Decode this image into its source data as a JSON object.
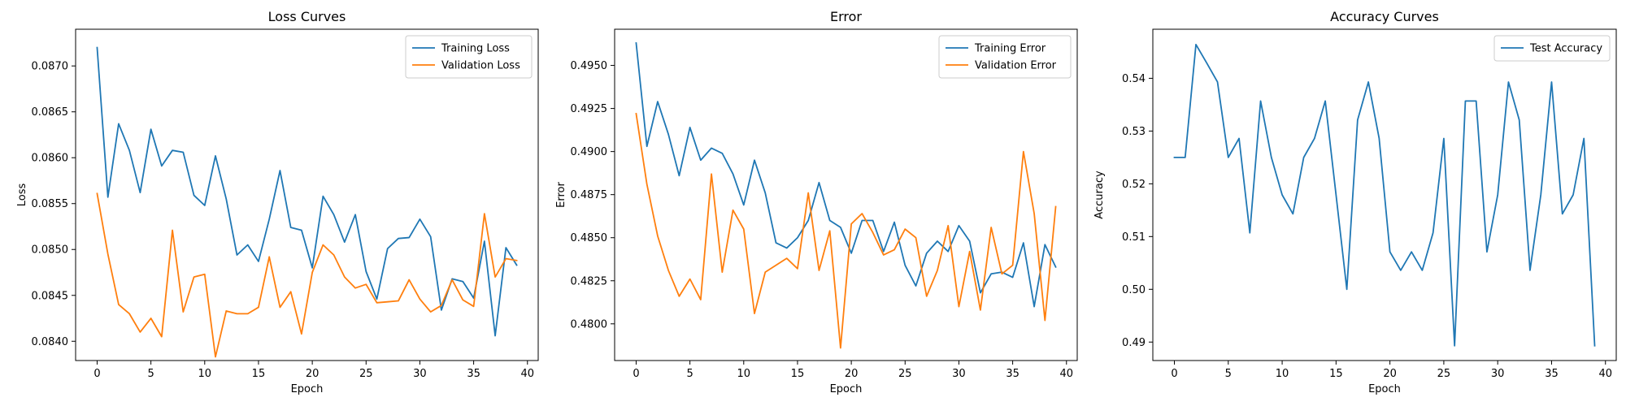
{
  "chart_data": [
    {
      "type": "line",
      "title": "Loss Curves",
      "xlabel": "Epoch",
      "ylabel": "Loss",
      "xlim": [
        -2,
        41
      ],
      "ylim": [
        0.08379,
        0.0874
      ],
      "xticks": [
        0,
        5,
        10,
        15,
        20,
        25,
        30,
        35,
        40
      ],
      "xtick_labels": [
        "0",
        "5",
        "10",
        "15",
        "20",
        "25",
        "30",
        "35",
        "40"
      ],
      "yticks": [
        0.084,
        0.0845,
        0.085,
        0.0855,
        0.086,
        0.0865,
        0.087
      ],
      "ytick_labels": [
        "0.0840",
        "0.0845",
        "0.0850",
        "0.0855",
        "0.0860",
        "0.0865",
        "0.0870"
      ],
      "legend": "top-right",
      "grid": false,
      "x": [
        0,
        1,
        2,
        3,
        4,
        5,
        6,
        7,
        8,
        9,
        10,
        11,
        12,
        13,
        14,
        15,
        16,
        17,
        18,
        19,
        20,
        21,
        22,
        23,
        24,
        25,
        26,
        27,
        28,
        29,
        30,
        31,
        32,
        33,
        34,
        35,
        36,
        37,
        38,
        39
      ],
      "series": [
        {
          "name": "Training Loss",
          "color": "#1f77b4",
          "values": [
            0.0872,
            0.08557,
            0.08637,
            0.08608,
            0.08562,
            0.08631,
            0.08591,
            0.08608,
            0.08606,
            0.08559,
            0.08548,
            0.08602,
            0.08555,
            0.08494,
            0.08505,
            0.08487,
            0.08533,
            0.08586,
            0.08524,
            0.08521,
            0.0848,
            0.08558,
            0.08538,
            0.08508,
            0.08538,
            0.08476,
            0.08446,
            0.08501,
            0.08512,
            0.08513,
            0.08533,
            0.08514,
            0.08434,
            0.08468,
            0.08465,
            0.08447,
            0.08509,
            0.08406,
            0.08502,
            0.08483
          ]
        },
        {
          "name": "Validation Loss",
          "color": "#ff7f0e",
          "values": [
            0.08561,
            0.08495,
            0.0844,
            0.0843,
            0.0841,
            0.08425,
            0.08405,
            0.08521,
            0.08432,
            0.0847,
            0.08473,
            0.08383,
            0.08433,
            0.0843,
            0.0843,
            0.08437,
            0.08492,
            0.08437,
            0.08454,
            0.08408,
            0.08475,
            0.08505,
            0.08494,
            0.0847,
            0.08458,
            0.08462,
            0.08442,
            0.08443,
            0.08444,
            0.08467,
            0.08446,
            0.08432,
            0.08439,
            0.08467,
            0.08445,
            0.08438,
            0.08539,
            0.0847,
            0.0849,
            0.08488
          ]
        }
      ]
    },
    {
      "type": "line",
      "title": "Error",
      "xlabel": "Epoch",
      "ylabel": "Error",
      "xlim": [
        -2,
        41
      ],
      "ylim": [
        0.47787,
        0.4971
      ],
      "xticks": [
        0,
        5,
        10,
        15,
        20,
        25,
        30,
        35,
        40
      ],
      "xtick_labels": [
        "0",
        "5",
        "10",
        "15",
        "20",
        "25",
        "30",
        "35",
        "40"
      ],
      "yticks": [
        0.48,
        0.4825,
        0.485,
        0.4875,
        0.49,
        0.4925,
        0.495
      ],
      "ytick_labels": [
        "0.4800",
        "0.4825",
        "0.4850",
        "0.4875",
        "0.4900",
        "0.4925",
        "0.4950"
      ],
      "legend": "top-right",
      "grid": false,
      "x": [
        0,
        1,
        2,
        3,
        4,
        5,
        6,
        7,
        8,
        9,
        10,
        11,
        12,
        13,
        14,
        15,
        16,
        17,
        18,
        19,
        20,
        21,
        22,
        23,
        24,
        25,
        26,
        27,
        28,
        29,
        30,
        31,
        32,
        33,
        34,
        35,
        36,
        37,
        38,
        39
      ],
      "series": [
        {
          "name": "Training Error",
          "color": "#1f77b4",
          "values": [
            0.4963,
            0.4903,
            0.4929,
            0.491,
            0.4886,
            0.4914,
            0.4895,
            0.4902,
            0.4899,
            0.4887,
            0.4869,
            0.4895,
            0.4876,
            0.4847,
            0.4844,
            0.485,
            0.486,
            0.4882,
            0.486,
            0.4856,
            0.4841,
            0.486,
            0.486,
            0.4842,
            0.4859,
            0.4834,
            0.4822,
            0.4841,
            0.4848,
            0.4842,
            0.4857,
            0.4848,
            0.4818,
            0.4829,
            0.483,
            0.4827,
            0.4847,
            0.481,
            0.4846,
            0.4833
          ]
        },
        {
          "name": "Validation Error",
          "color": "#ff7f0e",
          "values": [
            0.4922,
            0.4881,
            0.4851,
            0.4831,
            0.4816,
            0.4826,
            0.4814,
            0.4887,
            0.483,
            0.4866,
            0.4855,
            0.4806,
            0.483,
            0.4834,
            0.4838,
            0.4832,
            0.4876,
            0.4831,
            0.4854,
            0.4786,
            0.4858,
            0.4864,
            0.4853,
            0.484,
            0.4843,
            0.4855,
            0.485,
            0.4816,
            0.4831,
            0.4857,
            0.481,
            0.4842,
            0.4808,
            0.4856,
            0.4829,
            0.4834,
            0.49,
            0.4864,
            0.4802,
            0.4868
          ]
        }
      ]
    },
    {
      "type": "line",
      "title": "Accuracy Curves",
      "xlabel": "Epoch",
      "ylabel": "Accuracy",
      "xlim": [
        -2,
        41
      ],
      "ylim": [
        0.4865,
        0.5493
      ],
      "xticks": [
        0,
        5,
        10,
        15,
        20,
        25,
        30,
        35,
        40
      ],
      "xtick_labels": [
        "0",
        "5",
        "10",
        "15",
        "20",
        "25",
        "30",
        "35",
        "40"
      ],
      "yticks": [
        0.49,
        0.5,
        0.51,
        0.52,
        0.53,
        0.54
      ],
      "ytick_labels": [
        "0.49",
        "0.50",
        "0.51",
        "0.52",
        "0.53",
        "0.54"
      ],
      "legend": "top-right",
      "grid": false,
      "x": [
        0,
        1,
        2,
        3,
        4,
        5,
        6,
        7,
        8,
        9,
        10,
        11,
        12,
        13,
        14,
        15,
        16,
        17,
        18,
        19,
        20,
        21,
        22,
        23,
        24,
        25,
        26,
        27,
        28,
        29,
        30,
        31,
        32,
        33,
        34,
        35,
        36,
        37,
        38,
        39
      ],
      "series": [
        {
          "name": "Test Accuracy",
          "color": "#1f77b4",
          "values": [
            0.525,
            0.525,
            0.5464,
            0.5429,
            0.5393,
            0.525,
            0.5286,
            0.5107,
            0.5357,
            0.525,
            0.5179,
            0.5143,
            0.525,
            0.5286,
            0.5357,
            0.5179,
            0.5,
            0.5321,
            0.5393,
            0.5286,
            0.5071,
            0.5036,
            0.5071,
            0.5036,
            0.5107,
            0.5286,
            0.4893,
            0.5357,
            0.5357,
            0.5071,
            0.5179,
            0.5393,
            0.5321,
            0.5036,
            0.5179,
            0.5393,
            0.5143,
            0.5179,
            0.5286,
            0.4893
          ]
        }
      ]
    }
  ]
}
